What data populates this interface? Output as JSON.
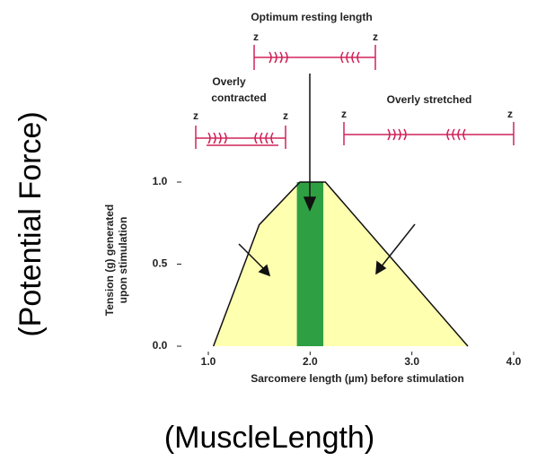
{
  "chart_data": {
    "type": "area",
    "x": [
      1.05,
      1.5,
      1.9,
      2.15,
      3.55
    ],
    "values": [
      0,
      0.74,
      1.0,
      1.0,
      0
    ],
    "color": "#ffffb0",
    "band": [
      1.87,
      2.13
    ],
    "band_color": "#2ea043",
    "xlim": [
      1.0,
      4.0
    ],
    "ylim": [
      0,
      1.0
    ],
    "xticks": [
      {
        "value": 1,
        "label": "1.0"
      },
      {
        "value": 2,
        "label": "2.0"
      },
      {
        "value": 3,
        "label": "3.0"
      },
      {
        "value": 4,
        "label": "4.0"
      }
    ],
    "yticks": [
      {
        "value": 0,
        "label": "0.0"
      },
      {
        "value": 0.5,
        "label": "0.5"
      },
      {
        "value": 1,
        "label": "1.0"
      }
    ],
    "xlabel": "Sarcomere length (µm) before stimulation",
    "ylabel": [
      "Tension (g) generated",
      "upon stimulation"
    ],
    "annotations": [
      {
        "title": [
          "Optimum resting length"
        ],
        "left": "z",
        "right": "z"
      },
      {
        "title": [
          "Overly",
          "contracted"
        ],
        "left": "z",
        "right": "z"
      },
      {
        "title": [
          "Overly stretched"
        ],
        "left": "z",
        "right": "z"
      }
    ],
    "side_label": "(Potential Force)",
    "bottom_label": "(MuscleLength)"
  }
}
